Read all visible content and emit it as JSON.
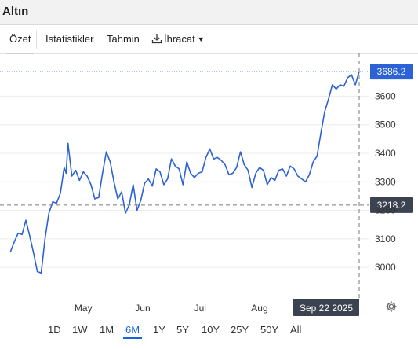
{
  "app": {
    "title": "Altın"
  },
  "tabs": [
    {
      "label": "Özet"
    },
    {
      "label": "Istatistikler"
    },
    {
      "label": "Tahmin"
    },
    {
      "label": "İhracat"
    }
  ],
  "chart_data": {
    "type": "line",
    "series": [
      {
        "color": "#2b62d6",
        "points": [
          [
            "2025-03-24",
            3055
          ],
          [
            "2025-03-26",
            3090
          ],
          [
            "2025-03-28",
            3120
          ],
          [
            "2025-03-30",
            3115
          ],
          [
            "2025-04-01",
            3165
          ],
          [
            "2025-04-03",
            3110
          ],
          [
            "2025-04-05",
            3050
          ],
          [
            "2025-04-07",
            2985
          ],
          [
            "2025-04-09",
            2980
          ],
          [
            "2025-04-11",
            3100
          ],
          [
            "2025-04-13",
            3190
          ],
          [
            "2025-04-15",
            3230
          ],
          [
            "2025-04-17",
            3225
          ],
          [
            "2025-04-19",
            3260
          ],
          [
            "2025-04-21",
            3350
          ],
          [
            "2025-04-22",
            3330
          ],
          [
            "2025-04-23",
            3435
          ],
          [
            "2025-04-25",
            3320
          ],
          [
            "2025-04-27",
            3340
          ],
          [
            "2025-04-29",
            3305
          ],
          [
            "2025-05-01",
            3335
          ],
          [
            "2025-05-03",
            3320
          ],
          [
            "2025-05-05",
            3290
          ],
          [
            "2025-05-07",
            3240
          ],
          [
            "2025-05-09",
            3245
          ],
          [
            "2025-05-11",
            3330
          ],
          [
            "2025-05-13",
            3405
          ],
          [
            "2025-05-15",
            3370
          ],
          [
            "2025-05-17",
            3300
          ],
          [
            "2025-05-19",
            3240
          ],
          [
            "2025-05-21",
            3265
          ],
          [
            "2025-05-23",
            3190
          ],
          [
            "2025-05-25",
            3220
          ],
          [
            "2025-05-27",
            3290
          ],
          [
            "2025-05-29",
            3200
          ],
          [
            "2025-05-31",
            3235
          ],
          [
            "2025-06-02",
            3295
          ],
          [
            "2025-06-04",
            3310
          ],
          [
            "2025-06-06",
            3285
          ],
          [
            "2025-06-08",
            3345
          ],
          [
            "2025-06-10",
            3335
          ],
          [
            "2025-06-12",
            3290
          ],
          [
            "2025-06-14",
            3310
          ],
          [
            "2025-06-16",
            3380
          ],
          [
            "2025-06-18",
            3355
          ],
          [
            "2025-06-20",
            3345
          ],
          [
            "2025-06-22",
            3290
          ],
          [
            "2025-06-24",
            3370
          ],
          [
            "2025-06-26",
            3330
          ],
          [
            "2025-06-28",
            3315
          ],
          [
            "2025-06-30",
            3330
          ],
          [
            "2025-07-02",
            3335
          ],
          [
            "2025-07-04",
            3385
          ],
          [
            "2025-07-06",
            3415
          ],
          [
            "2025-07-08",
            3380
          ],
          [
            "2025-07-10",
            3385
          ],
          [
            "2025-07-12",
            3375
          ],
          [
            "2025-07-14",
            3360
          ],
          [
            "2025-07-16",
            3325
          ],
          [
            "2025-07-18",
            3330
          ],
          [
            "2025-07-20",
            3350
          ],
          [
            "2025-07-22",
            3405
          ],
          [
            "2025-07-24",
            3360
          ],
          [
            "2025-07-26",
            3340
          ],
          [
            "2025-07-28",
            3280
          ],
          [
            "2025-07-30",
            3330
          ],
          [
            "2025-08-01",
            3350
          ],
          [
            "2025-08-03",
            3340
          ],
          [
            "2025-08-05",
            3290
          ],
          [
            "2025-08-07",
            3315
          ],
          [
            "2025-08-09",
            3305
          ],
          [
            "2025-08-11",
            3340
          ],
          [
            "2025-08-13",
            3345
          ],
          [
            "2025-08-15",
            3320
          ],
          [
            "2025-08-17",
            3355
          ],
          [
            "2025-08-19",
            3345
          ],
          [
            "2025-08-21",
            3320
          ],
          [
            "2025-08-23",
            3310
          ],
          [
            "2025-08-25",
            3300
          ],
          [
            "2025-08-27",
            3325
          ],
          [
            "2025-08-29",
            3370
          ],
          [
            "2025-08-31",
            3390
          ],
          [
            "2025-09-02",
            3470
          ],
          [
            "2025-09-04",
            3545
          ],
          [
            "2025-09-06",
            3590
          ],
          [
            "2025-09-08",
            3640
          ],
          [
            "2025-09-10",
            3625
          ],
          [
            "2025-09-12",
            3640
          ],
          [
            "2025-09-14",
            3635
          ],
          [
            "2025-09-16",
            3665
          ],
          [
            "2025-09-18",
            3675
          ],
          [
            "2025-09-20",
            3640
          ],
          [
            "2025-09-22",
            3686.2
          ]
        ]
      }
    ],
    "x_range": [
      "2025-03-23",
      "2025-09-22"
    ],
    "y_range": [
      2890,
      3750
    ],
    "x_ticks": [
      {
        "label": "May",
        "date": "2025-05-01"
      },
      {
        "label": "Jun",
        "date": "2025-06-01"
      },
      {
        "label": "Jul",
        "date": "2025-07-01"
      },
      {
        "label": "Aug",
        "date": "2025-08-01"
      }
    ],
    "y_ticks": [
      3000,
      3100,
      3200,
      3300,
      3400,
      3500,
      3600
    ],
    "last_value": {
      "label": "3686.2",
      "value": 3686.2,
      "color": "#2b62d6"
    },
    "crosshair": {
      "y_label": "3218.2",
      "y_value": 3218.2,
      "x_label": "Sep 22 2025",
      "x_date": "2025-09-22"
    },
    "grid": true
  },
  "ranges": [
    "1D",
    "1W",
    "1M",
    "6M",
    "1Y",
    "5Y",
    "10Y",
    "25Y",
    "50Y",
    "All"
  ],
  "active_range": "6M",
  "icons": {
    "export": "download-icon",
    "settings": "gear-icon"
  }
}
